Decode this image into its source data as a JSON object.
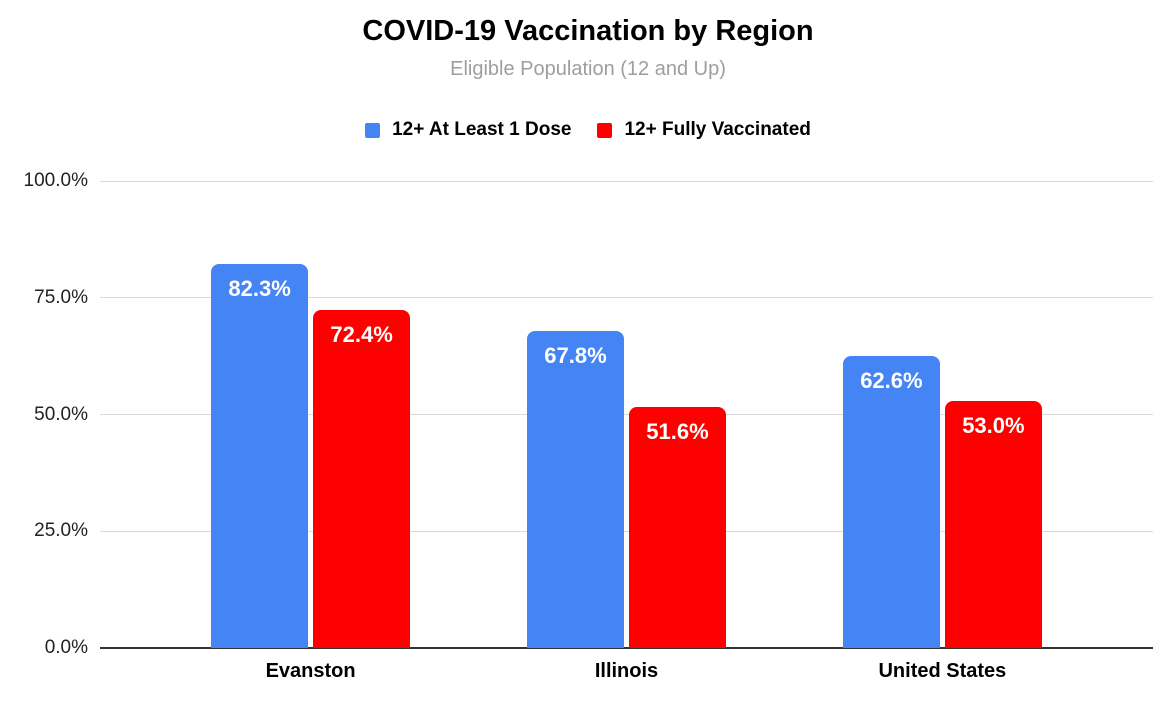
{
  "header": {
    "title": "COVID-19 Vaccination by Region",
    "subtitle": "Eligible Population (12 and Up)"
  },
  "chart_data": {
    "type": "bar",
    "title": "COVID-19 Vaccination by Region",
    "subtitle": "Eligible Population (12 and Up)",
    "categories": [
      "Evanston",
      "Illinois",
      "United States"
    ],
    "series": [
      {
        "name": "12+ At Least 1 Dose",
        "color": "#4584f4",
        "values": [
          82.3,
          67.8,
          62.6
        ],
        "bar_labels": [
          "82.3%",
          "67.8%",
          "62.6%"
        ]
      },
      {
        "name": "12+ Fully Vaccinated",
        "color": "#ff0000",
        "values": [
          72.4,
          51.6,
          53.0
        ],
        "bar_labels": [
          "72.4%",
          "51.6%",
          "53.0%"
        ]
      }
    ],
    "xlabel": "",
    "ylabel": "",
    "ylim": [
      0,
      100
    ],
    "yticks": [
      {
        "value": 100,
        "label": "100.0%"
      },
      {
        "value": 75,
        "label": "75.0%"
      },
      {
        "value": 50,
        "label": "50.0%"
      },
      {
        "value": 25,
        "label": "25.0%"
      },
      {
        "value": 0,
        "label": "0.0%"
      }
    ],
    "grid": true,
    "legend_position": "top",
    "colors": {
      "gridline": "#d9d9d9",
      "axis_line": "#333333",
      "bar_label_text": "#ffffff",
      "subtitle_text": "#9e9e9e"
    }
  }
}
